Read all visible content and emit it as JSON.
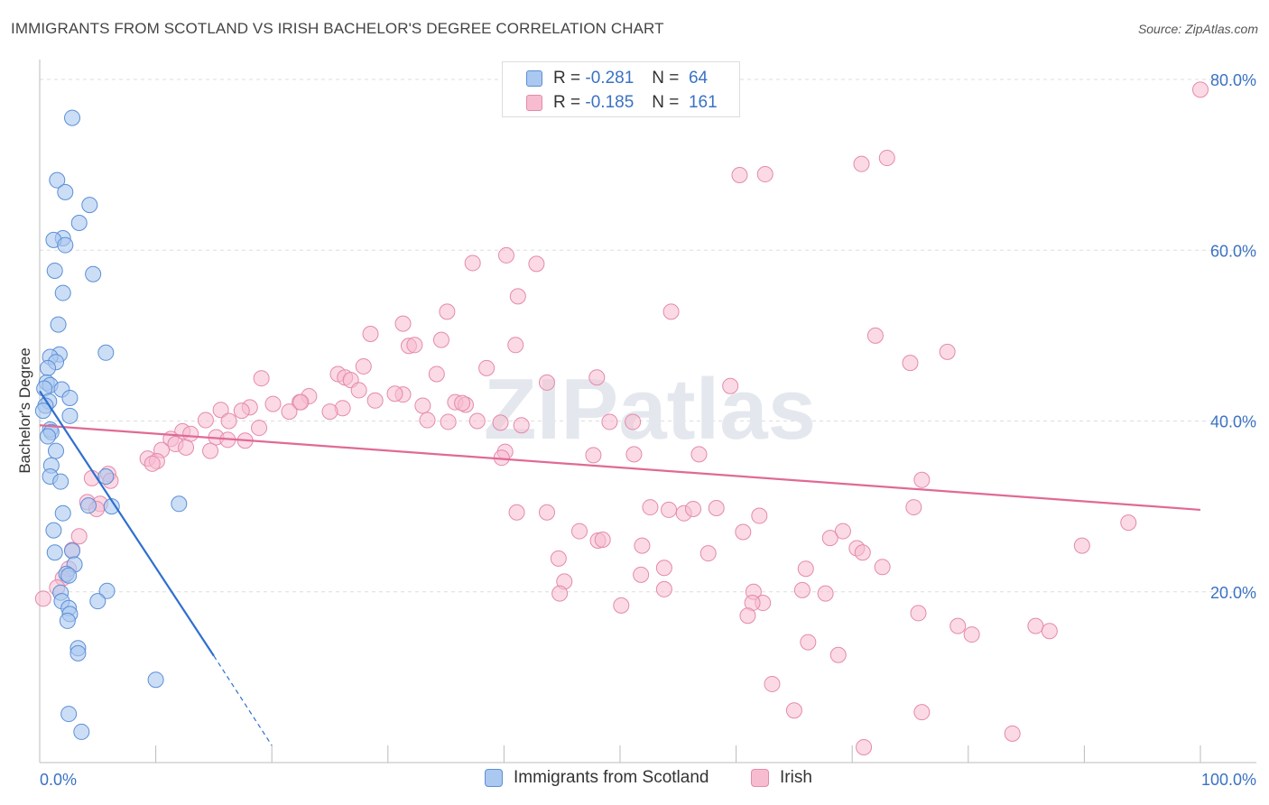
{
  "header": {
    "title": "IMMIGRANTS FROM SCOTLAND VS IRISH BACHELOR'S DEGREE CORRELATION CHART",
    "source": "Source: ZipAtlas.com"
  },
  "watermark": "ZIPatlas",
  "legend_top": {
    "rows": [
      {
        "r_label": "R =",
        "r_value": "-0.281",
        "n_label": "N =",
        "n_value": "64"
      },
      {
        "r_label": "R =",
        "r_value": "-0.185",
        "n_label": "N =",
        "n_value": "161"
      }
    ]
  },
  "legend_bottom": {
    "items": [
      "Immigrants from Scotland",
      "Irish"
    ]
  },
  "colors": {
    "blue_fill": "#aac8f0",
    "blue_stroke": "#5b8fd6",
    "blue_line": "#2f6fcf",
    "pink_fill": "#f7bcd0",
    "pink_stroke": "#e48aab",
    "pink_line": "#e06a95",
    "tick_text": "#3a72c4",
    "grid": "#dddddd"
  },
  "chart_data": {
    "type": "scatter",
    "title": "IMMIGRANTS FROM SCOTLAND VS IRISH BACHELOR'S DEGREE CORRELATION CHART",
    "xlabel": "",
    "ylabel": "Bachelor's Degree",
    "xlim": [
      0,
      100
    ],
    "ylim": [
      0,
      80
    ],
    "x_tick_labels": [
      "0.0%",
      "100.0%"
    ],
    "y_ticks": [
      20,
      40,
      60,
      80
    ],
    "y_tick_labels": [
      "20.0%",
      "40.0%",
      "60.0%",
      "80.0%"
    ],
    "grid": true,
    "legend_position": "bottom-center",
    "series": [
      {
        "name": "Immigrants from Scotland",
        "r": -0.281,
        "n": 64,
        "trend": {
          "x0": 0,
          "y0": 43.5,
          "x1": 15,
          "y1": 12.5,
          "dash_to_x": 20,
          "dash_to_y": 2
        },
        "points": [
          [
            2.8,
            75.5
          ],
          [
            1.5,
            68.2
          ],
          [
            2.2,
            66.8
          ],
          [
            4.3,
            65.3
          ],
          [
            3.4,
            63.2
          ],
          [
            2.0,
            61.4
          ],
          [
            1.2,
            61.2
          ],
          [
            2.2,
            60.6
          ],
          [
            1.3,
            57.6
          ],
          [
            4.6,
            57.2
          ],
          [
            2.0,
            55.0
          ],
          [
            1.6,
            51.3
          ],
          [
            5.7,
            48.0
          ],
          [
            1.7,
            47.8
          ],
          [
            0.9,
            47.5
          ],
          [
            1.4,
            46.9
          ],
          [
            0.7,
            46.2
          ],
          [
            0.6,
            44.5
          ],
          [
            0.9,
            44.2
          ],
          [
            0.4,
            43.8
          ],
          [
            1.9,
            43.7
          ],
          [
            2.6,
            42.7
          ],
          [
            0.8,
            42.3
          ],
          [
            0.5,
            41.8
          ],
          [
            0.3,
            41.2
          ],
          [
            2.6,
            40.6
          ],
          [
            0.9,
            39.0
          ],
          [
            1.0,
            38.7
          ],
          [
            0.7,
            38.2
          ],
          [
            1.4,
            36.5
          ],
          [
            1.0,
            34.8
          ],
          [
            0.9,
            33.5
          ],
          [
            1.8,
            32.9
          ],
          [
            5.7,
            33.5
          ],
          [
            6.2,
            30.0
          ],
          [
            4.2,
            30.1
          ],
          [
            2.0,
            29.2
          ],
          [
            12.0,
            30.3
          ],
          [
            1.2,
            27.2
          ],
          [
            1.3,
            24.6
          ],
          [
            2.8,
            24.8
          ],
          [
            3.0,
            23.2
          ],
          [
            2.3,
            22.1
          ],
          [
            2.5,
            21.9
          ],
          [
            5.8,
            20.1
          ],
          [
            1.8,
            19.9
          ],
          [
            1.9,
            18.9
          ],
          [
            5.0,
            18.9
          ],
          [
            2.5,
            18.1
          ],
          [
            2.6,
            17.4
          ],
          [
            2.4,
            16.6
          ],
          [
            3.3,
            13.4
          ],
          [
            3.3,
            12.8
          ],
          [
            10.0,
            9.7
          ],
          [
            2.5,
            5.7
          ],
          [
            3.6,
            3.6
          ]
        ]
      },
      {
        "name": "Irish",
        "r": -0.185,
        "n": 161,
        "trend": {
          "x0": 0,
          "y0": 39.5,
          "x1": 100,
          "y1": 29.6
        },
        "points": [
          [
            100,
            78.8
          ],
          [
            73.0,
            70.8
          ],
          [
            70.8,
            70.1
          ],
          [
            60.3,
            68.8
          ],
          [
            62.5,
            68.9
          ],
          [
            40.2,
            59.4
          ],
          [
            37.3,
            58.5
          ],
          [
            42.8,
            58.4
          ],
          [
            41.2,
            54.6
          ],
          [
            35.1,
            52.8
          ],
          [
            54.4,
            52.8
          ],
          [
            31.3,
            51.4
          ],
          [
            28.5,
            50.2
          ],
          [
            72.0,
            50.0
          ],
          [
            34.6,
            49.5
          ],
          [
            31.8,
            48.8
          ],
          [
            32.3,
            48.9
          ],
          [
            41.0,
            48.9
          ],
          [
            78.2,
            48.1
          ],
          [
            75.0,
            46.8
          ],
          [
            27.9,
            46.4
          ],
          [
            38.5,
            46.2
          ],
          [
            34.2,
            45.5
          ],
          [
            25.7,
            45.5
          ],
          [
            19.1,
            45.0
          ],
          [
            26.3,
            45.1
          ],
          [
            26.8,
            44.8
          ],
          [
            43.7,
            44.5
          ],
          [
            48.0,
            45.1
          ],
          [
            59.5,
            44.1
          ],
          [
            27.5,
            43.6
          ],
          [
            23.2,
            42.9
          ],
          [
            20.1,
            42.0
          ],
          [
            31.3,
            43.1
          ],
          [
            30.6,
            43.2
          ],
          [
            28.9,
            42.4
          ],
          [
            22.4,
            42.2
          ],
          [
            22.5,
            42.2
          ],
          [
            26.1,
            41.5
          ],
          [
            35.8,
            42.2
          ],
          [
            36.7,
            41.9
          ],
          [
            36.4,
            42.1
          ],
          [
            18.1,
            41.6
          ],
          [
            33.0,
            41.8
          ],
          [
            15.6,
            41.3
          ],
          [
            17.4,
            41.2
          ],
          [
            21.5,
            41.1
          ],
          [
            25.0,
            41.1
          ],
          [
            37.7,
            40.0
          ],
          [
            39.7,
            39.8
          ],
          [
            41.5,
            39.5
          ],
          [
            33.4,
            40.1
          ],
          [
            35.2,
            39.9
          ],
          [
            49.1,
            39.9
          ],
          [
            51.1,
            39.9
          ],
          [
            14.3,
            40.1
          ],
          [
            16.3,
            40.0
          ],
          [
            18.9,
            39.2
          ],
          [
            12.3,
            38.8
          ],
          [
            13.0,
            38.5
          ],
          [
            15.2,
            38.1
          ],
          [
            16.2,
            37.8
          ],
          [
            17.7,
            37.7
          ],
          [
            11.3,
            37.9
          ],
          [
            11.7,
            37.3
          ],
          [
            12.6,
            36.9
          ],
          [
            10.5,
            36.6
          ],
          [
            14.7,
            36.5
          ],
          [
            40.1,
            36.4
          ],
          [
            47.7,
            36.0
          ],
          [
            51.2,
            36.1
          ],
          [
            56.8,
            36.1
          ],
          [
            9.3,
            35.6
          ],
          [
            10.1,
            35.3
          ],
          [
            9.7,
            35.0
          ],
          [
            39.8,
            35.7
          ],
          [
            5.9,
            33.8
          ],
          [
            6.1,
            33.0
          ],
          [
            4.5,
            33.3
          ],
          [
            76.0,
            33.1
          ],
          [
            4.1,
            30.5
          ],
          [
            5.2,
            30.3
          ],
          [
            4.9,
            29.7
          ],
          [
            52.6,
            29.9
          ],
          [
            54.2,
            29.6
          ],
          [
            58.3,
            29.8
          ],
          [
            75.3,
            29.9
          ],
          [
            41.1,
            29.3
          ],
          [
            43.7,
            29.3
          ],
          [
            55.5,
            29.2
          ],
          [
            56.3,
            29.7
          ],
          [
            62.0,
            28.9
          ],
          [
            93.8,
            28.1
          ],
          [
            46.5,
            27.1
          ],
          [
            60.6,
            27.0
          ],
          [
            69.2,
            27.1
          ],
          [
            68.1,
            26.3
          ],
          [
            3.4,
            26.5
          ],
          [
            48.1,
            26.0
          ],
          [
            48.5,
            26.1
          ],
          [
            51.9,
            25.4
          ],
          [
            89.8,
            25.4
          ],
          [
            2.8,
            24.9
          ],
          [
            70.4,
            25.1
          ],
          [
            70.9,
            24.6
          ],
          [
            57.6,
            24.5
          ],
          [
            44.7,
            23.9
          ],
          [
            53.8,
            22.8
          ],
          [
            66.0,
            22.7
          ],
          [
            72.6,
            22.9
          ],
          [
            2.5,
            22.7
          ],
          [
            51.8,
            22.0
          ],
          [
            2.0,
            21.6
          ],
          [
            45.2,
            21.2
          ],
          [
            1.5,
            20.5
          ],
          [
            53.8,
            20.3
          ],
          [
            61.5,
            20.0
          ],
          [
            65.7,
            20.2
          ],
          [
            67.7,
            19.8
          ],
          [
            44.8,
            19.8
          ],
          [
            0.3,
            19.2
          ],
          [
            62.3,
            18.7
          ],
          [
            61.4,
            18.7
          ],
          [
            50.1,
            18.4
          ],
          [
            75.7,
            17.5
          ],
          [
            61.0,
            17.2
          ],
          [
            79.1,
            16.0
          ],
          [
            85.8,
            16.0
          ],
          [
            87.0,
            15.4
          ],
          [
            80.3,
            15.0
          ],
          [
            66.2,
            14.1
          ],
          [
            68.8,
            12.6
          ],
          [
            63.1,
            9.2
          ],
          [
            65.0,
            6.1
          ],
          [
            76.0,
            5.9
          ],
          [
            83.8,
            3.4
          ],
          [
            71.0,
            1.8
          ]
        ]
      }
    ]
  }
}
